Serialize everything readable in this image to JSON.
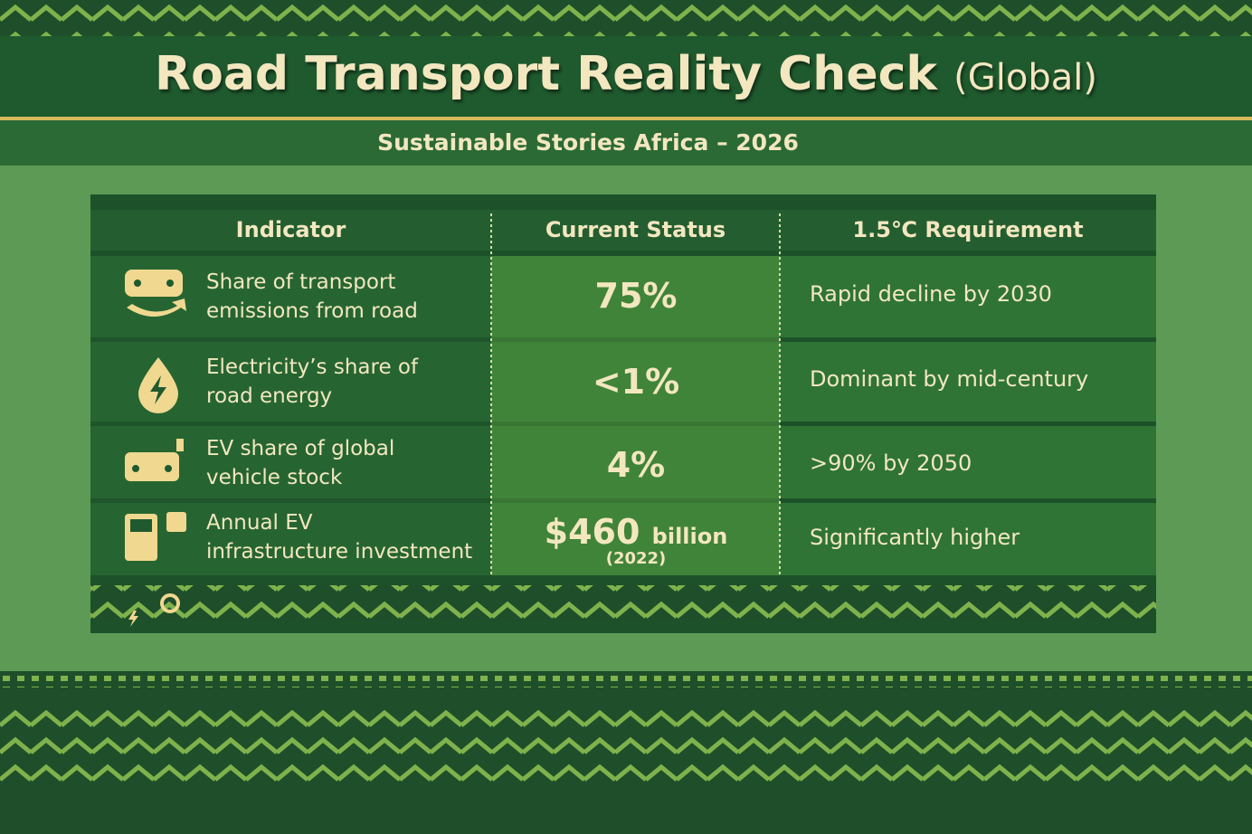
{
  "header": {
    "title": "Road Transport Reality Check",
    "title_suffix": "(Global)",
    "subtitle": "Sustainable Stories Africa – 2026"
  },
  "table": {
    "columns": [
      "Indicator",
      "Current Status",
      "1.5℃ Requirement"
    ],
    "rows": [
      {
        "indicator": [
          "Share of transport",
          "emissions from road"
        ],
        "status": "75%",
        "requirement": "Rapid decline by 2030"
      },
      {
        "indicator": [
          "Electricity’s share of",
          "road energy"
        ],
        "status": "<1%",
        "requirement": "Dominant by mid-century"
      },
      {
        "indicator": [
          "EV share of global",
          "vehicle stock"
        ],
        "status": "4%",
        "requirement": ">90% by 2050"
      },
      {
        "indicator": [
          "Annual EV",
          "infrastructure investment"
        ],
        "status": "$460",
        "status_unit": "billion",
        "status_note": "(2022)",
        "requirement": "Significantly higher"
      }
    ]
  }
}
